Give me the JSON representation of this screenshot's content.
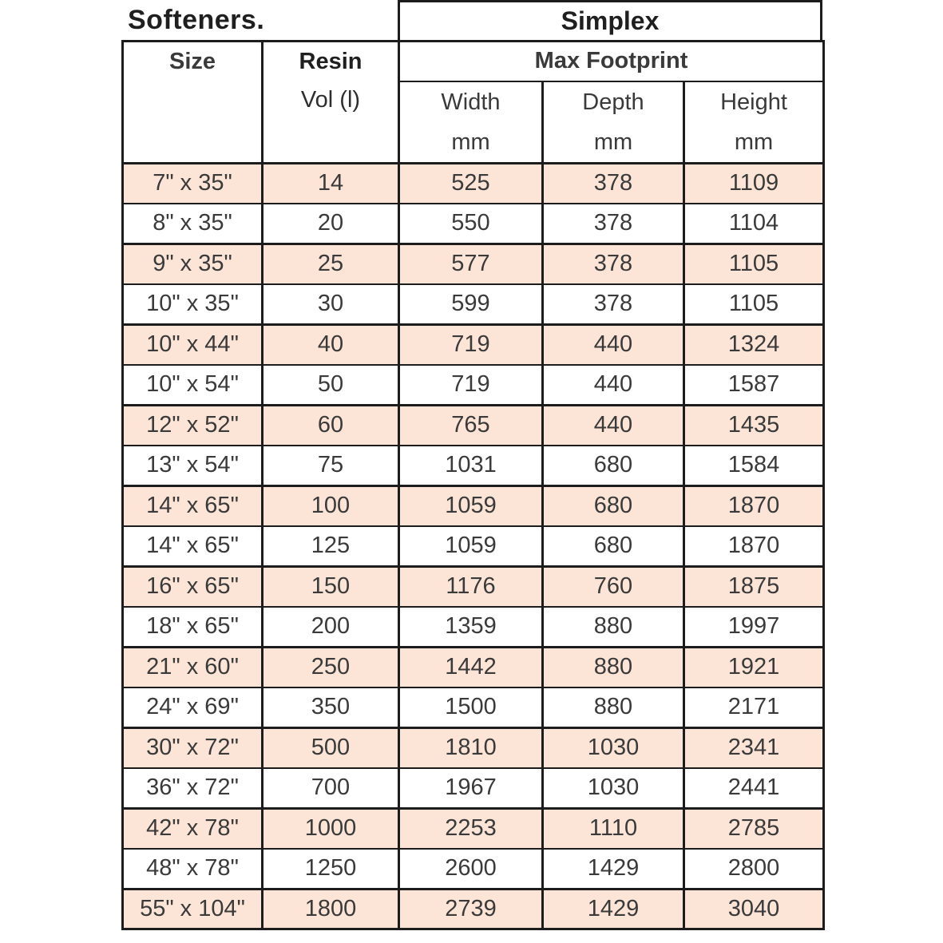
{
  "page": {
    "background": "#ffffff"
  },
  "title_left": "Softeners.",
  "title_right": "Simplex",
  "chart_data": {
    "type": "table",
    "title": "Softeners. / Simplex",
    "header": {
      "size": "Size",
      "resin": "Resin",
      "resin_unit": "Vol (l)",
      "footprint_group": "Max Footprint",
      "width": "Width",
      "depth": "Depth",
      "height": "Height",
      "unit": "mm"
    },
    "rows": [
      {
        "size": "7\" x 35\"",
        "resin_vol_l": "14",
        "width_mm": "525",
        "depth_mm": "378",
        "height_mm": "1109"
      },
      {
        "size": "8\" x 35\"",
        "resin_vol_l": "20",
        "width_mm": "550",
        "depth_mm": "378",
        "height_mm": "1104"
      },
      {
        "size": "9\" x 35\"",
        "resin_vol_l": "25",
        "width_mm": "577",
        "depth_mm": "378",
        "height_mm": "1105"
      },
      {
        "size": "10\" x 35\"",
        "resin_vol_l": "30",
        "width_mm": "599",
        "depth_mm": "378",
        "height_mm": "1105"
      },
      {
        "size": "10\" x 44\"",
        "resin_vol_l": "40",
        "width_mm": "719",
        "depth_mm": "440",
        "height_mm": "1324"
      },
      {
        "size": "10\" x 54\"",
        "resin_vol_l": "50",
        "width_mm": "719",
        "depth_mm": "440",
        "height_mm": "1587"
      },
      {
        "size": "12\" x 52\"",
        "resin_vol_l": "60",
        "width_mm": "765",
        "depth_mm": "440",
        "height_mm": "1435"
      },
      {
        "size": "13\" x 54\"",
        "resin_vol_l": "75",
        "width_mm": "1031",
        "depth_mm": "680",
        "height_mm": "1584"
      },
      {
        "size": "14\" x 65\"",
        "resin_vol_l": "100",
        "width_mm": "1059",
        "depth_mm": "680",
        "height_mm": "1870"
      },
      {
        "size": "14\" x 65\"",
        "resin_vol_l": "125",
        "width_mm": "1059",
        "depth_mm": "680",
        "height_mm": "1870"
      },
      {
        "size": "16\" x 65\"",
        "resin_vol_l": "150",
        "width_mm": "1176",
        "depth_mm": "760",
        "height_mm": "1875"
      },
      {
        "size": "18\" x 65\"",
        "resin_vol_l": "200",
        "width_mm": "1359",
        "depth_mm": "880",
        "height_mm": "1997"
      },
      {
        "size": "21\" x 60\"",
        "resin_vol_l": "250",
        "width_mm": "1442",
        "depth_mm": "880",
        "height_mm": "1921"
      },
      {
        "size": "24\" x 69\"",
        "resin_vol_l": "350",
        "width_mm": "1500",
        "depth_mm": "880",
        "height_mm": "2171"
      },
      {
        "size": "30\" x 72\"",
        "resin_vol_l": "500",
        "width_mm": "1810",
        "depth_mm": "1030",
        "height_mm": "2341"
      },
      {
        "size": "36\" x 72\"",
        "resin_vol_l": "700",
        "width_mm": "1967",
        "depth_mm": "1030",
        "height_mm": "2441"
      },
      {
        "size": "42\" x 78\"",
        "resin_vol_l": "1000",
        "width_mm": "2253",
        "depth_mm": "1110",
        "height_mm": "2785"
      },
      {
        "size": "48\" x 78\"",
        "resin_vol_l": "1250",
        "width_mm": "2600",
        "depth_mm": "1429",
        "height_mm": "2800"
      },
      {
        "size": "55\" x 104\"",
        "resin_vol_l": "1800",
        "width_mm": "2739",
        "depth_mm": "1429",
        "height_mm": "3040"
      }
    ]
  },
  "colors": {
    "row_highlight": "#fce4d6",
    "row_plain": "#ffffff",
    "border": "#1c1c1c",
    "text": "#3a3a3a"
  }
}
